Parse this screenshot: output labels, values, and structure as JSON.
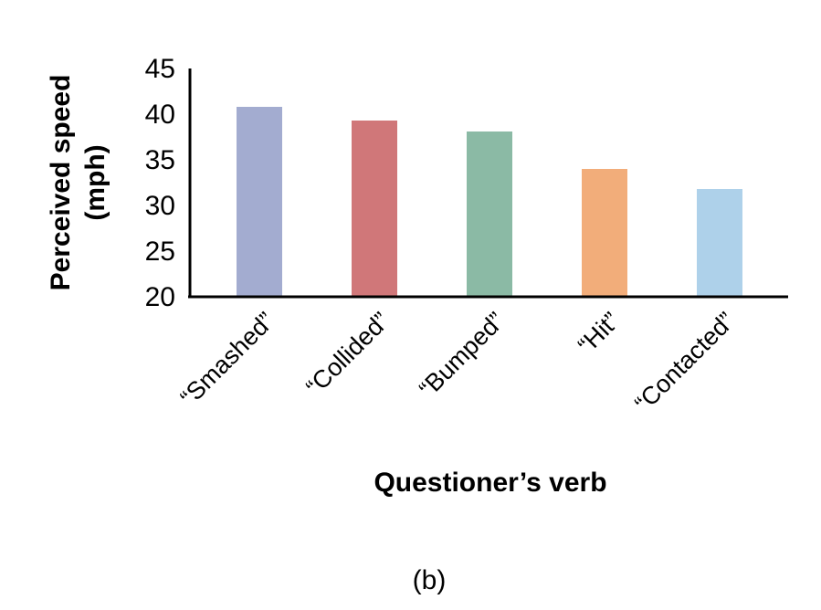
{
  "panel_label": "(b)",
  "chart_data": {
    "type": "bar",
    "title": "",
    "xlabel": "Questioner’s verb",
    "ylabel_lines": [
      "Perceived speed",
      "(mph)"
    ],
    "ylabel": "Perceived speed (mph)",
    "ylim": [
      20,
      45
    ],
    "yticks": [
      20,
      25,
      30,
      35,
      40,
      45
    ],
    "grid": false,
    "legend": "none",
    "categories": [
      "“Smashed”",
      "“Collided”",
      "“Bumped”",
      "“Hit”",
      "“Contacted”"
    ],
    "values": [
      40.8,
      39.3,
      38.1,
      34.0,
      31.8
    ],
    "colors": [
      "#a3acd0",
      "#d07779",
      "#8bbaa5",
      "#f2ad7a",
      "#aed1ea"
    ]
  }
}
